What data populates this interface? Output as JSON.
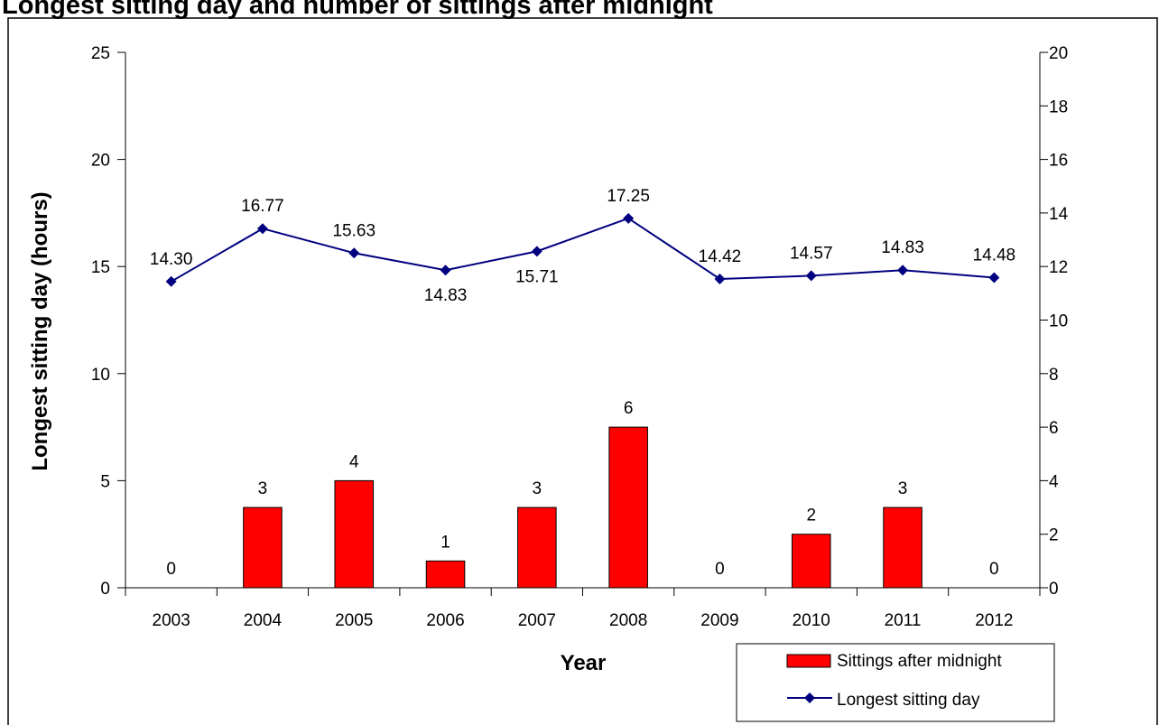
{
  "title": "Longest sitting day and number of sittings after midnight",
  "chart_data": {
    "type": "bar+line",
    "categories": [
      "2003",
      "2004",
      "2005",
      "2006",
      "2007",
      "2008",
      "2009",
      "2010",
      "2011",
      "2012"
    ],
    "series": [
      {
        "name": "Sittings after midnight",
        "type": "bar",
        "axis": "right",
        "values": [
          0,
          3,
          4,
          1,
          3,
          6,
          0,
          2,
          3,
          0
        ],
        "labels": [
          "0",
          "3",
          "4",
          "1",
          "3",
          "6",
          "0",
          "2",
          "3",
          "0"
        ]
      },
      {
        "name": "Longest sitting day",
        "type": "line",
        "axis": "left",
        "values": [
          14.3,
          16.77,
          15.63,
          14.83,
          15.71,
          17.25,
          14.42,
          14.57,
          14.83,
          14.48
        ],
        "labels": [
          "14.30",
          "16.77",
          "15.63",
          "14.83",
          "15.71",
          "17.25",
          "14.42",
          "14.57",
          "14.83",
          "14.48"
        ]
      }
    ],
    "xlabel": "Year",
    "ylabel": "Longest sitting day (hours)",
    "ylim": [
      0,
      25
    ],
    "y_ticks": [
      "0",
      "5",
      "10",
      "15",
      "20",
      "25"
    ],
    "y2lim": [
      0,
      20
    ],
    "y2_ticks": [
      "0",
      "2",
      "4",
      "6",
      "8",
      "10",
      "12",
      "14",
      "16",
      "18",
      "20"
    ],
    "grid": false,
    "legend": "bottom-right",
    "colors": {
      "bar": "#ff0000",
      "bar_stroke": "#000000",
      "line": "#000080",
      "marker": "#000080"
    }
  }
}
